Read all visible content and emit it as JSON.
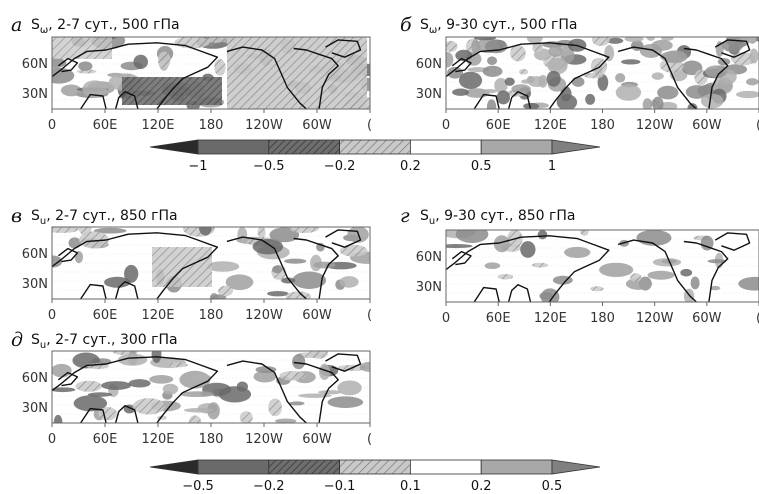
{
  "panels": [
    {
      "letter": "а",
      "var": "S",
      "sub": "ω",
      "title": ", 2-7 сут., 500 гПа",
      "x_ticks": [
        "0",
        "60E",
        "120E",
        "180",
        "120W",
        "60W",
        "("
      ],
      "y_ticks": [
        "60N",
        "30N"
      ]
    },
    {
      "letter": "б",
      "var": "S",
      "sub": "ω",
      "title": ", 9-30 сут., 500 гПа",
      "x_ticks": [
        "0",
        "60E",
        "120E",
        "180",
        "120W",
        "60W",
        "("
      ],
      "y_ticks": [
        "60N",
        "30N"
      ]
    },
    {
      "letter": "в",
      "var": "S",
      "sub": "u",
      "title": ", 2-7 сут., 850 гПа",
      "x_ticks": [
        "0",
        "60E",
        "120E",
        "180",
        "120W",
        "60W",
        "("
      ],
      "y_ticks": [
        "60N",
        "30N"
      ]
    },
    {
      "letter": "г",
      "var": "S",
      "sub": "u",
      "title": ", 9-30 сут., 850 гПа",
      "x_ticks": [
        "0",
        "60E",
        "120E",
        "180",
        "120W",
        "60W",
        "("
      ],
      "y_ticks": [
        "60N",
        "30N"
      ]
    },
    {
      "letter": "д",
      "var": "S",
      "sub": "u",
      "title": ", 2-7 сут., 300 гПа",
      "x_ticks": [
        "0",
        "60E",
        "120E",
        "180",
        "120W",
        "60W",
        "("
      ],
      "y_ticks": [
        "60N",
        "30N"
      ]
    }
  ],
  "colorbars": [
    {
      "labels": [
        "−1",
        "−0.5",
        "−0.2",
        "0.2",
        "0.5",
        "1"
      ],
      "fills": [
        "#3d3d3d",
        "#6a6a6a",
        "#9c9c9c",
        "#ffffff",
        "#a8a8a8",
        "#808080"
      ]
    },
    {
      "labels": [
        "−0.5",
        "−0.2",
        "−0.1",
        "0.1",
        "0.2",
        "0.5"
      ],
      "fills": [
        "#3d3d3d",
        "#6a6a6a",
        "#9c9c9c",
        "#ffffff",
        "#a8a8a8",
        "#808080"
      ]
    }
  ]
}
